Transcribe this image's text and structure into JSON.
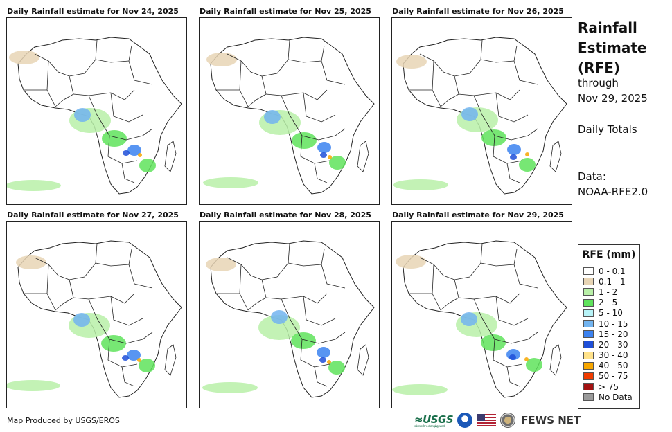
{
  "panels": [
    {
      "title": "Daily Rainfall estimate for Nov 24, 2025"
    },
    {
      "title": "Daily Rainfall estimate for Nov 25, 2025"
    },
    {
      "title": "Daily Rainfall estimate for Nov 26, 2025"
    },
    {
      "title": "Daily Rainfall estimate for Nov 27, 2025"
    },
    {
      "title": "Daily Rainfall estimate for Nov 28, 2025"
    },
    {
      "title": "Daily Rainfall estimate for Nov 29, 2025"
    }
  ],
  "side": {
    "title_line1": "Rainfall",
    "title_line2": "Estimate",
    "title_line3": "(RFE)",
    "through": "through",
    "date": "Nov 29, 2025",
    "daily_totals": "Daily Totals",
    "data_label": "Data:",
    "data_source": "NOAA-RFE2.0"
  },
  "legend": {
    "title": "RFE (mm)",
    "items": [
      {
        "label": "0 - 0.1",
        "color": "#ffffff"
      },
      {
        "label": "0.1 - 1",
        "color": "#e8d5b5"
      },
      {
        "label": "1 - 2",
        "color": "#b9f0a8"
      },
      {
        "label": "2 - 5",
        "color": "#5fe35c"
      },
      {
        "label": "5 - 10",
        "color": "#b7f3f7"
      },
      {
        "label": "10 - 15",
        "color": "#72b4f0"
      },
      {
        "label": "15 - 20",
        "color": "#3b82f0"
      },
      {
        "label": "20 - 30",
        "color": "#1f4fd8"
      },
      {
        "label": "30 - 40",
        "color": "#ffe28a"
      },
      {
        "label": "40 - 50",
        "color": "#f7a600"
      },
      {
        "label": "50 - 75",
        "color": "#f03c00"
      },
      {
        "label": "> 75",
        "color": "#a31212"
      },
      {
        "label": "No Data",
        "color": "#9a9a9a"
      }
    ]
  },
  "footer": {
    "credit": "Map Produced by USGS/EROS"
  },
  "logos": {
    "usgs": "USGS",
    "usgs_tagline": "science for a changing world",
    "fews": "FEWS NET"
  }
}
